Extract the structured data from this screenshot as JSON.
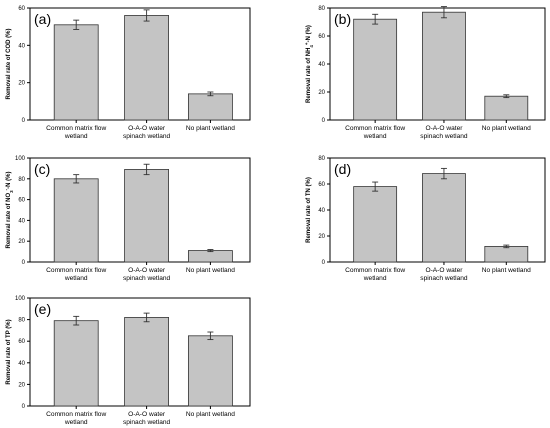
{
  "style": {
    "bar_fill": "#c4c4c4",
    "bar_stroke": "#333333",
    "axis_color": "#000000",
    "background": "#ffffff"
  },
  "chart_data": [
    {
      "type": "bar",
      "panel_label": "(a)",
      "categories": [
        [
          "Common matrix flow",
          "wetland"
        ],
        [
          "O-A-O water",
          "spinach wetland"
        ],
        [
          "No plant wetland"
        ]
      ],
      "values": [
        51,
        56,
        14
      ],
      "errors": [
        2.5,
        3,
        1
      ],
      "ylabel": "Removal rate of COD (%)",
      "ylim": [
        0,
        60
      ],
      "yticks": [
        0,
        20,
        40,
        60
      ],
      "grid": false
    },
    {
      "type": "bar",
      "panel_label": "(b)",
      "categories": [
        [
          "Common matrix flow",
          "wetland"
        ],
        [
          "O-A-O water",
          "spinach wetland"
        ],
        [
          "No plant wetland"
        ]
      ],
      "values": [
        72,
        77,
        17
      ],
      "errors": [
        3.5,
        4,
        1
      ],
      "ylabel": "Removal rate of NH4+-N (%)",
      "ylabel_parts": [
        "Removal rate of NH",
        "4",
        "+",
        "-N (%)"
      ],
      "ylim": [
        0,
        80
      ],
      "yticks": [
        0,
        20,
        40,
        60,
        80
      ],
      "grid": false
    },
    {
      "type": "bar",
      "panel_label": "(c)",
      "categories": [
        [
          "Common matrix flow",
          "wetland"
        ],
        [
          "O-A-O water",
          "spinach wetland"
        ],
        [
          "No plant wetland"
        ]
      ],
      "values": [
        80,
        89,
        11
      ],
      "errors": [
        4,
        5,
        1
      ],
      "ylabel": "Removal rate of NO3--N (%)",
      "ylabel_parts": [
        "Removal rate of NO",
        "3",
        "-",
        "-N (%)"
      ],
      "ylim": [
        0,
        100
      ],
      "yticks": [
        0,
        20,
        40,
        60,
        80,
        100
      ],
      "grid": false
    },
    {
      "type": "bar",
      "panel_label": "(d)",
      "categories": [
        [
          "Common matrix flow",
          "wetland"
        ],
        [
          "O-A-O water",
          "spinach wetland"
        ],
        [
          "No plant wetland"
        ]
      ],
      "values": [
        58,
        68,
        12
      ],
      "errors": [
        3.5,
        4,
        1
      ],
      "ylabel": "Removal rate of TN (%)",
      "ylim": [
        0,
        80
      ],
      "yticks": [
        0,
        20,
        40,
        60,
        80
      ],
      "grid": false
    },
    {
      "type": "bar",
      "panel_label": "(e)",
      "categories": [
        [
          "Common matrix flow",
          "wetland"
        ],
        [
          "O-A-O water",
          "spinach wetland"
        ],
        [
          "No plant wetland"
        ]
      ],
      "values": [
        79,
        82,
        65
      ],
      "errors": [
        4,
        4,
        3.5
      ],
      "ylabel": "Removal rate of TP (%)",
      "ylim": [
        0,
        100
      ],
      "yticks": [
        0,
        20,
        40,
        60,
        80,
        100
      ],
      "grid": false
    }
  ]
}
